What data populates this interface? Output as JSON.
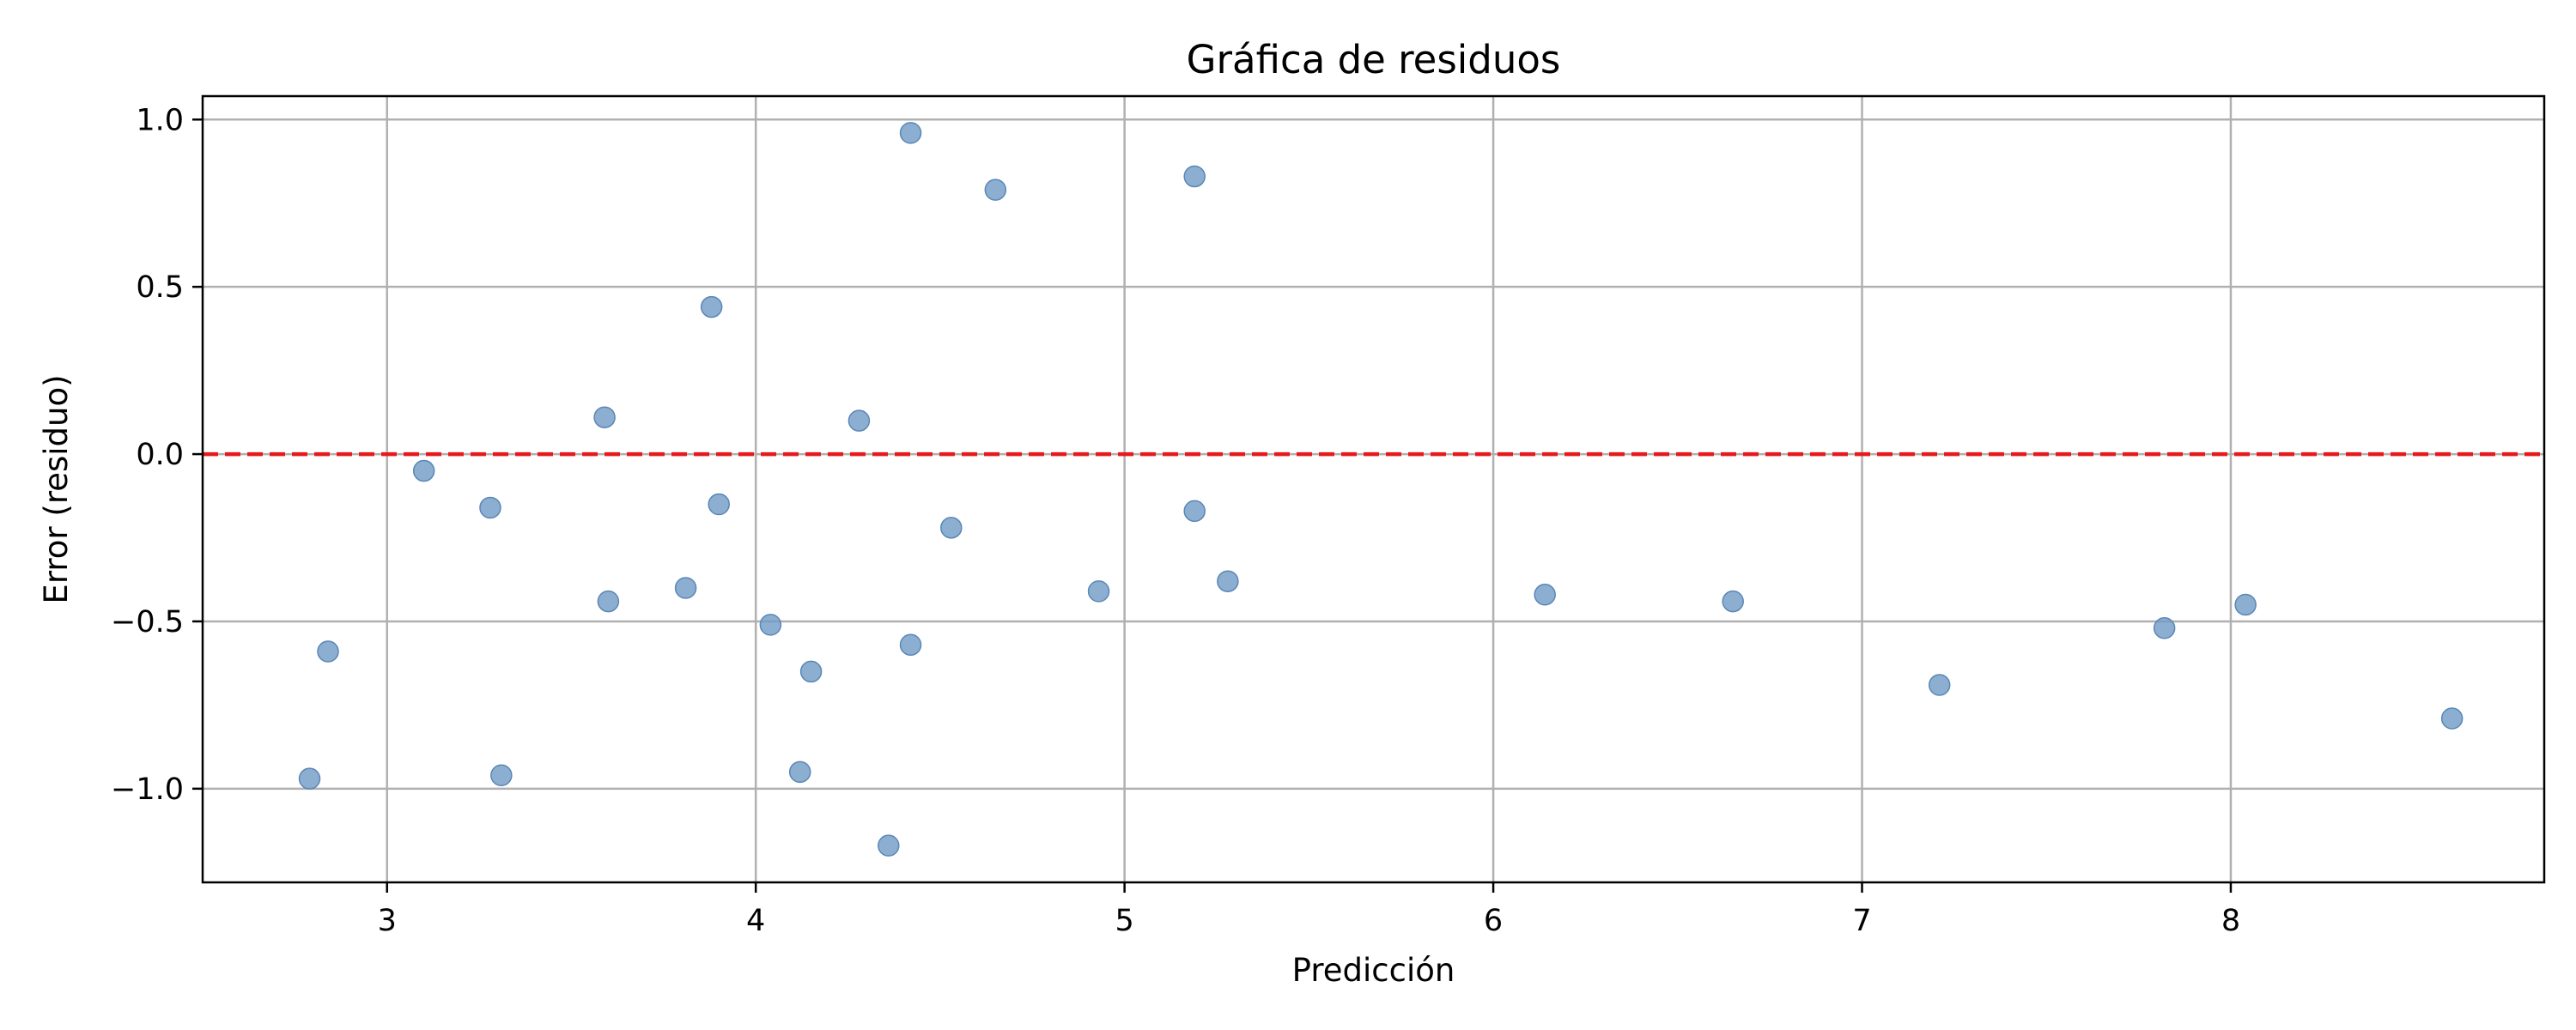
{
  "chart_data": {
    "type": "scatter",
    "title": "Gráfica de residuos",
    "xlabel": "Predicción",
    "ylabel": "Error (residuo)",
    "xlim": [
      2.5,
      8.85
    ],
    "ylim": [
      -1.28,
      1.07
    ],
    "xticks": [
      {
        "value": 3,
        "label": "3"
      },
      {
        "value": 4,
        "label": "4"
      },
      {
        "value": 5,
        "label": "5"
      },
      {
        "value": 6,
        "label": "6"
      },
      {
        "value": 7,
        "label": "7"
      },
      {
        "value": 8,
        "label": "8"
      }
    ],
    "yticks": [
      {
        "value": 1.0,
        "label": "1.0"
      },
      {
        "value": 0.5,
        "label": "0.5"
      },
      {
        "value": 0.0,
        "label": "0.0"
      },
      {
        "value": -0.5,
        "label": "−0.5"
      },
      {
        "value": -1.0,
        "label": "−1.0"
      }
    ],
    "grid": true,
    "reference_line": {
      "y": 0,
      "style": "dashed",
      "color": "#e8191c"
    },
    "point_color": "#6f9bc6",
    "points": [
      {
        "x": 2.79,
        "y": -0.97
      },
      {
        "x": 2.84,
        "y": -0.59
      },
      {
        "x": 3.1,
        "y": -0.05
      },
      {
        "x": 3.28,
        "y": -0.16
      },
      {
        "x": 3.31,
        "y": -0.96
      },
      {
        "x": 3.59,
        "y": 0.11
      },
      {
        "x": 3.6,
        "y": -0.44
      },
      {
        "x": 3.81,
        "y": -0.4
      },
      {
        "x": 3.88,
        "y": 0.44
      },
      {
        "x": 3.9,
        "y": -0.15
      },
      {
        "x": 4.04,
        "y": -0.51
      },
      {
        "x": 4.12,
        "y": -0.95
      },
      {
        "x": 4.15,
        "y": -0.65
      },
      {
        "x": 4.28,
        "y": 0.1
      },
      {
        "x": 4.36,
        "y": -1.17
      },
      {
        "x": 4.42,
        "y": 0.96
      },
      {
        "x": 4.42,
        "y": -0.57
      },
      {
        "x": 4.53,
        "y": -0.22
      },
      {
        "x": 4.65,
        "y": 0.79
      },
      {
        "x": 4.93,
        "y": -0.41
      },
      {
        "x": 5.19,
        "y": 0.83
      },
      {
        "x": 5.19,
        "y": -0.17
      },
      {
        "x": 5.28,
        "y": -0.38
      },
      {
        "x": 6.14,
        "y": -0.42
      },
      {
        "x": 6.65,
        "y": -0.44
      },
      {
        "x": 7.21,
        "y": -0.69
      },
      {
        "x": 7.82,
        "y": -0.52
      },
      {
        "x": 8.04,
        "y": -0.45
      },
      {
        "x": 8.6,
        "y": -0.79
      }
    ]
  }
}
